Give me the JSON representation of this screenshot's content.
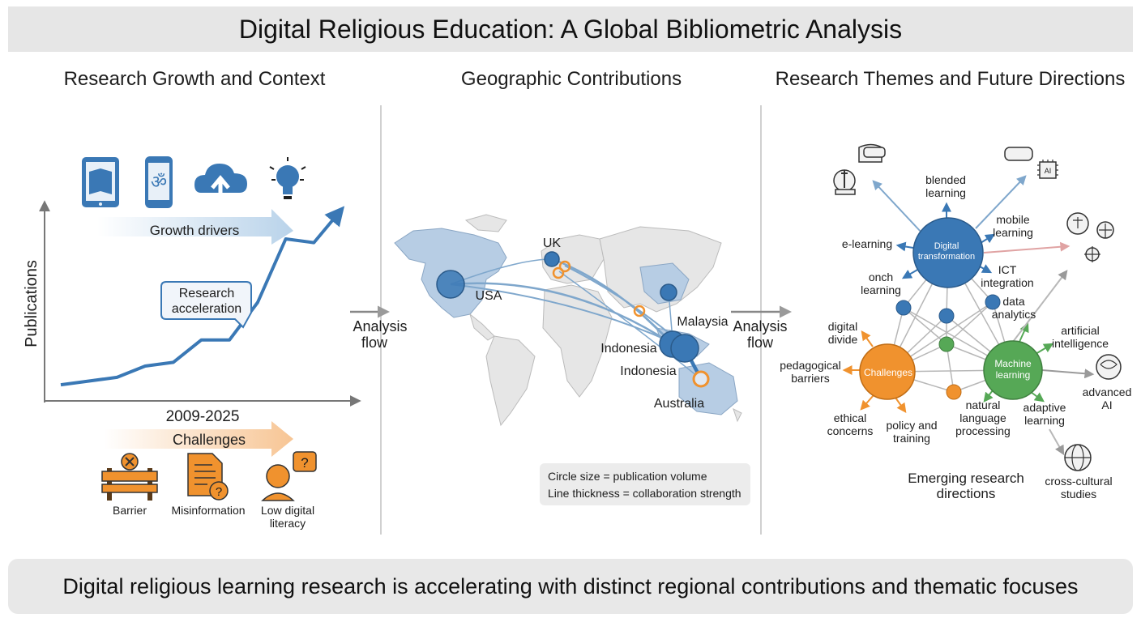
{
  "title": "Digital Religious Education: A Global Bibliometric Analysis",
  "footer": "Digital religious learning research is accelerating with distinct regional contributions and thematic focuses",
  "sections": {
    "growth": "Research Growth and Context",
    "geo": "Geographic Contributions",
    "themes": "Research Themes and Future Directions"
  },
  "growth_panel": {
    "drivers_label": "Growth drivers",
    "driver_icons": [
      "tablet-book-icon",
      "phone-om-icon",
      "cloud-upload-icon",
      "lightbulb-icon"
    ],
    "y_label": "Publications",
    "x_label": "2009-2025",
    "callout": [
      "Research",
      "acceleration"
    ],
    "challenges_label": "Challenges",
    "challenges": [
      {
        "icon": "barrier-icon",
        "label": [
          "Barrier"
        ]
      },
      {
        "icon": "document-question-icon",
        "label": [
          "Misinformation"
        ]
      },
      {
        "icon": "confused-person-icon",
        "label": [
          "Low digital",
          "literacy"
        ]
      }
    ],
    "trend": [
      0.06,
      0.08,
      0.1,
      0.16,
      0.18,
      0.3,
      0.3,
      0.5,
      0.84,
      0.82,
      1.0
    ]
  },
  "flow_label": [
    "Analysis",
    "flow"
  ],
  "geo_panel": {
    "countries": {
      "uk": "UK",
      "usa": "USA",
      "malaysia": "Malaysia",
      "indonesia_a": "Indonesia",
      "indonesia_b": "Indonesia",
      "australia": "Australia"
    },
    "legend": [
      "Circle size = publication volume",
      "Line thickness = collaboration strength"
    ]
  },
  "themes_panel": {
    "hubs": {
      "digital": [
        "Digital",
        "transformation"
      ],
      "challenges": [
        "Challenges"
      ],
      "ml": [
        "Machine",
        "learning"
      ]
    },
    "labels": {
      "blended": [
        "blended",
        "learning"
      ],
      "mobile": [
        "mobile",
        "learning"
      ],
      "elearning": [
        "e-learning"
      ],
      "onch": [
        "onch",
        "learning"
      ],
      "ict": [
        "ICT",
        "integration"
      ],
      "data": [
        "data",
        "analytics"
      ],
      "ai": [
        "artificial",
        "intelligence"
      ],
      "divide": [
        "digital",
        "divide"
      ],
      "pedagogical": [
        "pedagogical",
        "barriers"
      ],
      "ethical": [
        "ethical",
        "concerns"
      ],
      "policy": [
        "policy and",
        "training"
      ],
      "nlp": [
        "natural",
        "language",
        "processing"
      ],
      "adaptive": [
        "adaptive",
        "learning"
      ],
      "advanced": [
        "advanced",
        "AI"
      ],
      "crosscultural": [
        "cross-cultural",
        "studies"
      ],
      "emerging": [
        "Emerging research",
        "directions"
      ]
    },
    "colors": {
      "blue": "#3a78b5",
      "orange": "#f0922e",
      "green": "#56a856"
    }
  }
}
